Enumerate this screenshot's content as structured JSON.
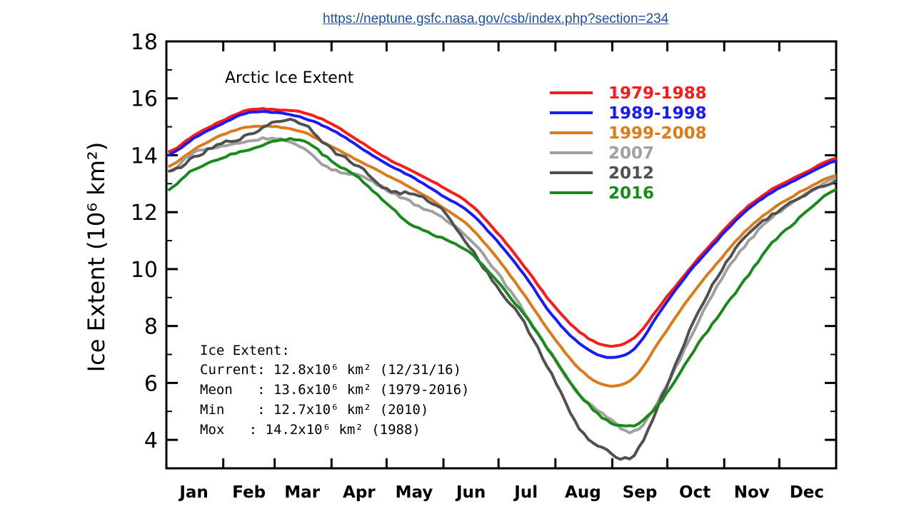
{
  "source_url": "https://neptune.gsfc.nasa.gov/csb/index.php?section=234",
  "chart_data": {
    "type": "line",
    "title": "Arctic Ice Extent",
    "xlabel": "",
    "ylabel": "Ice Extent (10⁶ km²)",
    "ylim": [
      3,
      18
    ],
    "yticks": [
      4,
      6,
      8,
      10,
      12,
      14,
      16,
      18
    ],
    "xlim": [
      0,
      365
    ],
    "months": [
      "Jan",
      "Feb",
      "Mar",
      "Apr",
      "May",
      "Jun",
      "Jul",
      "Aug",
      "Sep",
      "Oct",
      "Nov",
      "Dec"
    ],
    "month_centers": [
      15,
      45,
      74,
      105,
      135,
      166,
      196,
      227,
      258,
      288,
      319,
      349
    ],
    "x_days": [
      1,
      15,
      30,
      45,
      60,
      75,
      90,
      105,
      120,
      135,
      150,
      165,
      180,
      195,
      210,
      225,
      240,
      255,
      270,
      285,
      300,
      315,
      330,
      345,
      365
    ],
    "series": [
      {
        "name": "1979-1988",
        "color": "#ff1a1a",
        "width": 4,
        "values": [
          14.1,
          14.7,
          15.2,
          15.6,
          15.6,
          15.5,
          15.1,
          14.5,
          13.9,
          13.4,
          12.9,
          12.3,
          11.3,
          10.1,
          8.8,
          7.8,
          7.3,
          7.6,
          8.8,
          10.0,
          11.1,
          12.1,
          12.8,
          13.3,
          13.9
        ]
      },
      {
        "name": "1989-1998",
        "color": "#1a1aff",
        "width": 4,
        "values": [
          14.0,
          14.6,
          15.1,
          15.5,
          15.5,
          15.3,
          14.9,
          14.3,
          13.7,
          13.2,
          12.6,
          12.0,
          11.0,
          9.8,
          8.4,
          7.4,
          6.9,
          7.2,
          8.6,
          9.9,
          11.0,
          12.0,
          12.7,
          13.2,
          13.8
        ]
      },
      {
        "name": "1999-2008",
        "color": "#dd7a1a",
        "width": 4,
        "values": [
          13.6,
          14.2,
          14.7,
          15.0,
          15.0,
          14.8,
          14.3,
          13.8,
          13.3,
          12.8,
          12.2,
          11.5,
          10.4,
          9.1,
          7.7,
          6.5,
          5.9,
          6.2,
          7.6,
          9.0,
          10.2,
          11.3,
          12.1,
          12.7,
          13.3
        ]
      },
      {
        "name": "2007",
        "color": "#a0a0a0",
        "width": 4,
        "values": [
          13.4,
          14.1,
          14.3,
          14.5,
          14.6,
          14.2,
          13.5,
          13.3,
          12.8,
          12.3,
          11.8,
          11.1,
          9.9,
          8.5,
          7.0,
          5.6,
          4.8,
          4.3,
          5.6,
          7.5,
          9.4,
          10.8,
          11.8,
          12.5,
          13.2
        ]
      },
      {
        "name": "2012",
        "color": "#505050",
        "width": 4,
        "values": [
          13.4,
          13.9,
          14.4,
          14.7,
          15.2,
          15.1,
          14.2,
          13.6,
          12.8,
          12.6,
          12.1,
          10.8,
          9.4,
          8.1,
          6.3,
          4.4,
          3.6,
          3.5,
          5.5,
          7.8,
          9.7,
          11.1,
          11.9,
          12.5,
          13.1
        ]
      },
      {
        "name": "2016",
        "color": "#1a8a1a",
        "width": 4,
        "values": [
          12.8,
          13.5,
          13.9,
          14.2,
          14.5,
          14.5,
          13.8,
          13.2,
          12.3,
          11.5,
          11.1,
          10.6,
          9.6,
          8.4,
          7.0,
          5.6,
          4.7,
          4.5,
          5.4,
          6.9,
          8.3,
          9.6,
          10.9,
          11.8,
          12.8
        ]
      }
    ],
    "annotation": {
      "heading": "Ice Extent:",
      "lines": [
        "Current: 12.8x10⁶ km² (12/31/16)",
        "Meon   : 13.6x10⁶ km² (1979-2016)",
        "Min    : 12.7x10⁶ km² (2010)",
        "Mox   : 14.2x10⁶ km² (1988)"
      ]
    }
  }
}
